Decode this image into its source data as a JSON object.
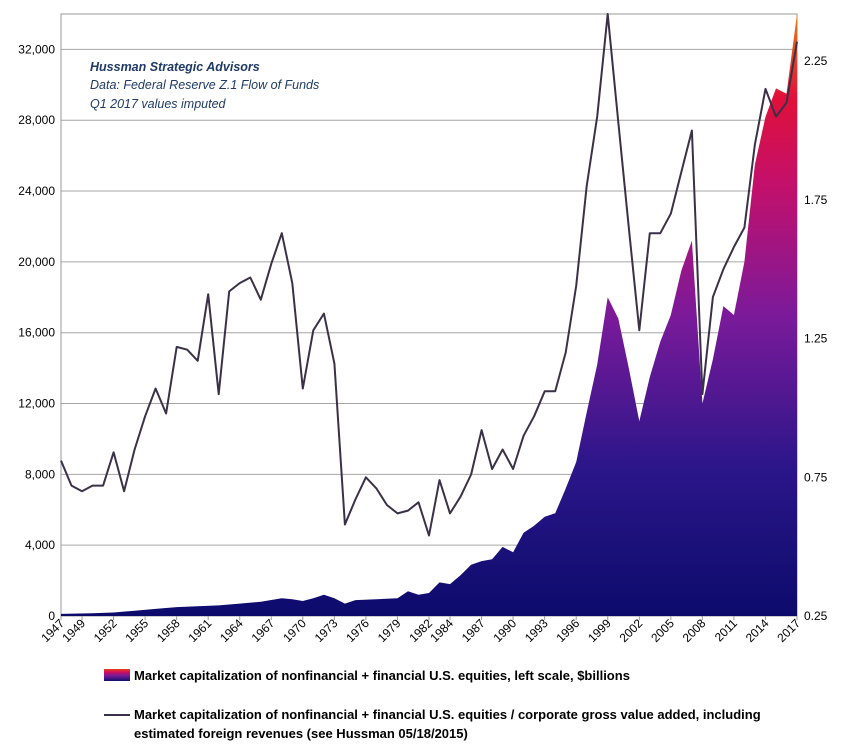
{
  "chart_data": {
    "type": "area",
    "annotation": {
      "title": "Hussman Strategic Advisors",
      "line1": "Data: Federal Reserve Z.1 Flow of Funds",
      "line2": "Q1 2017  values imputed"
    },
    "x_ticks": [
      "1947",
      "1949",
      "1952",
      "1955",
      "1958",
      "1961",
      "1964",
      "1967",
      "1970",
      "1973",
      "1976",
      "1979",
      "1982",
      "1984",
      "1987",
      "1990",
      "1993",
      "1996",
      "1999",
      "2002",
      "2005",
      "2008",
      "2011",
      "2014",
      "2017"
    ],
    "x_range": [
      1947,
      2017
    ],
    "y_left": {
      "ticks": [
        "0",
        "4,000",
        "8,000",
        "12,000",
        "16,000",
        "20,000",
        "24,000",
        "28,000",
        "32,000"
      ],
      "range": [
        0,
        34000
      ]
    },
    "y_right": {
      "ticks": [
        "0.25",
        "0.75",
        "1.25",
        "1.75",
        "2.25"
      ],
      "range": [
        0.25,
        2.42
      ]
    },
    "grid": "horizontal",
    "series": [
      {
        "name": "Market capitalization of nonfinancial + financial U.S. equities, left scale, $billions",
        "axis": "left",
        "kind": "area",
        "x": [
          1947,
          1950,
          1952,
          1954,
          1956,
          1958,
          1960,
          1962,
          1964,
          1966,
          1968,
          1969,
          1970,
          1971,
          1972,
          1973,
          1974,
          1975,
          1977,
          1979,
          1980,
          1981,
          1982,
          1983,
          1984,
          1985,
          1986,
          1987,
          1988,
          1989,
          1990,
          1991,
          1992,
          1993,
          1994,
          1995,
          1996,
          1997,
          1998,
          1999,
          2000,
          2001,
          2002,
          2003,
          2004,
          2005,
          2006,
          2007,
          2008,
          2009,
          2010,
          2011,
          2012,
          2013,
          2014,
          2015,
          2016,
          2017
        ],
        "y": [
          120,
          150,
          200,
          300,
          400,
          500,
          550,
          600,
          700,
          800,
          1000,
          950,
          850,
          1000,
          1200,
          1000,
          700,
          900,
          950,
          1000,
          1400,
          1200,
          1300,
          1900,
          1800,
          2300,
          2900,
          3100,
          3200,
          3900,
          3600,
          4700,
          5100,
          5600,
          5800,
          7200,
          8700,
          11500,
          14200,
          18000,
          16800,
          14000,
          11000,
          13500,
          15500,
          17000,
          19500,
          21200,
          12000,
          14500,
          17500,
          17000,
          20000,
          25500,
          28200,
          29800,
          29500,
          34000
        ]
      },
      {
        "name": "Market capitalization of nonfinancial + financial U.S. equities / corporate gross value added, including estimated foreign revenues (see Hussman 05/18/2015)",
        "axis": "right",
        "kind": "line",
        "x": [
          1947,
          1948,
          1949,
          1950,
          1951,
          1952,
          1953,
          1954,
          1955,
          1956,
          1957,
          1958,
          1959,
          1960,
          1961,
          1962,
          1963,
          1964,
          1965,
          1966,
          1967,
          1968,
          1969,
          1970,
          1971,
          1972,
          1973,
          1974,
          1975,
          1976,
          1977,
          1978,
          1979,
          1980,
          1981,
          1982,
          1983,
          1984,
          1985,
          1986,
          1987,
          1988,
          1989,
          1990,
          1991,
          1992,
          1993,
          1994,
          1995,
          1996,
          1997,
          1998,
          1999,
          2000,
          2001,
          2002,
          2003,
          2004,
          2005,
          2006,
          2007,
          2008,
          2009,
          2010,
          2011,
          2012,
          2013,
          2014,
          2015,
          2016,
          2017
        ],
        "y": [
          0.81,
          0.72,
          0.7,
          0.72,
          0.72,
          0.84,
          0.7,
          0.85,
          0.97,
          1.07,
          0.98,
          1.22,
          1.21,
          1.17,
          1.41,
          1.05,
          1.42,
          1.45,
          1.47,
          1.39,
          1.52,
          1.63,
          1.45,
          1.07,
          1.28,
          1.34,
          1.16,
          0.58,
          0.67,
          0.75,
          0.71,
          0.65,
          0.62,
          0.63,
          0.66,
          0.54,
          0.74,
          0.62,
          0.68,
          0.76,
          0.92,
          0.78,
          0.85,
          0.78,
          0.9,
          0.97,
          1.06,
          1.06,
          1.2,
          1.44,
          1.8,
          2.05,
          2.42,
          2.03,
          1.65,
          1.28,
          1.63,
          1.63,
          1.7,
          1.85,
          2.0,
          1.05,
          1.4,
          1.5,
          1.58,
          1.65,
          1.95,
          2.15,
          2.05,
          2.1,
          2.32
        ]
      }
    ]
  }
}
